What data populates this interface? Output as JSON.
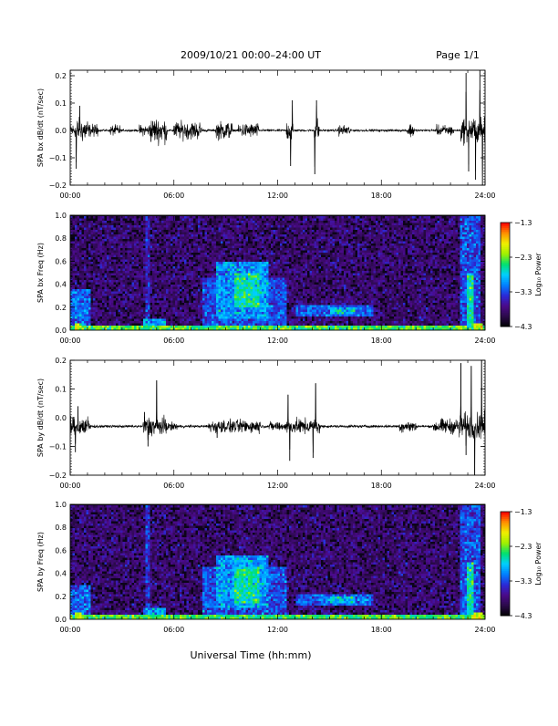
{
  "header": {
    "title": "2009/10/21  00:00–24:00 UT",
    "page": "Page 1/1"
  },
  "footer": {
    "xlabel": "Universal Time (hh:mm)"
  },
  "colors": {
    "trace": "#000000",
    "colormap": [
      "#000000",
      "#2a0a4a",
      "#4b0a8a",
      "#2a2ad8",
      "#0080ff",
      "#00d0ff",
      "#00e070",
      "#a0f000",
      "#f0f000",
      "#ff9000",
      "#ff0000"
    ]
  },
  "chart_data": [
    {
      "type": "line",
      "ylabel": "SPA bx dB/dt (nT/sec)",
      "xlim": [
        0,
        24
      ],
      "ylim": [
        -0.2,
        0.22
      ],
      "xticks": [
        "00:00",
        "06:00",
        "12:00",
        "18:00",
        "24:00"
      ],
      "yticks": [
        "0.2",
        "0.1",
        "0.0",
        "−0.1",
        "−0.2"
      ],
      "ytick_values": [
        0.2,
        0.1,
        0.0,
        -0.1,
        -0.2
      ],
      "baseline": 0.0,
      "noise_level": 0.006,
      "envelope": [
        {
          "t0": 0.0,
          "t1": 0.4,
          "amp": 0.04
        },
        {
          "t0": 0.4,
          "t1": 1.0,
          "amp": 0.07
        },
        {
          "t0": 1.0,
          "t1": 1.6,
          "amp": 0.035
        },
        {
          "t0": 2.3,
          "t1": 2.9,
          "amp": 0.03
        },
        {
          "t0": 4.0,
          "t1": 4.6,
          "amp": 0.03
        },
        {
          "t0": 4.6,
          "t1": 5.6,
          "amp": 0.07
        },
        {
          "t0": 6.0,
          "t1": 7.6,
          "amp": 0.05
        },
        {
          "t0": 8.4,
          "t1": 9.4,
          "amp": 0.05
        },
        {
          "t0": 9.7,
          "t1": 10.9,
          "amp": 0.04
        },
        {
          "t0": 12.5,
          "t1": 12.9,
          "amp": 0.06
        },
        {
          "t0": 14.1,
          "t1": 14.4,
          "amp": 0.07
        },
        {
          "t0": 15.5,
          "t1": 16.2,
          "amp": 0.03
        },
        {
          "t0": 19.5,
          "t1": 19.9,
          "amp": 0.04
        },
        {
          "t0": 21.2,
          "t1": 22.2,
          "amp": 0.03
        },
        {
          "t0": 22.6,
          "t1": 24.0,
          "amp": 0.07
        }
      ],
      "spikes": [
        {
          "t": 0.35,
          "value": -0.14
        },
        {
          "t": 0.55,
          "value": 0.09
        },
        {
          "t": 12.75,
          "value": -0.13
        },
        {
          "t": 12.85,
          "value": 0.11
        },
        {
          "t": 14.15,
          "value": -0.16
        },
        {
          "t": 14.25,
          "value": 0.11
        },
        {
          "t": 22.9,
          "value": 0.21
        },
        {
          "t": 23.05,
          "value": -0.15
        },
        {
          "t": 23.45,
          "value": -0.18
        },
        {
          "t": 23.7,
          "value": 0.22
        },
        {
          "t": 23.85,
          "value": -0.2
        }
      ]
    },
    {
      "type": "heatmap",
      "ylabel": "SPA bx Freq (Hz)",
      "xlim": [
        0,
        24
      ],
      "ylim": [
        0.0,
        1.0
      ],
      "xticks": [
        "00:00",
        "06:00",
        "12:00",
        "18:00",
        "24:00"
      ],
      "yticks": [
        "1.0",
        "0.8",
        "0.6",
        "0.4",
        "0.2",
        "0.0"
      ],
      "ytick_values": [
        1.0,
        0.8,
        0.6,
        0.4,
        0.2,
        0.0
      ],
      "colorbar": {
        "label": "Log₁₀ Power",
        "ticks": [
          "−1.3",
          "−2.3",
          "−3.3",
          "−4.3"
        ],
        "tick_values": [
          -1.3,
          -2.3,
          -3.3,
          -4.3
        ],
        "range": [
          -4.3,
          -1.3
        ]
      },
      "background_level": -3.85,
      "features": [
        {
          "t0": 0.0,
          "t1": 24.0,
          "f0": 0.0,
          "f1": 0.03,
          "level": -2.4
        },
        {
          "t0": 0.0,
          "t1": 1.2,
          "f0": 0.0,
          "f1": 0.35,
          "level": -3.2
        },
        {
          "t0": 0.2,
          "t1": 0.7,
          "f0": 0.0,
          "f1": 0.05,
          "level": -2.1
        },
        {
          "t0": 4.4,
          "t1": 4.6,
          "f0": 0.0,
          "f1": 1.0,
          "level": -3.5
        },
        {
          "t0": 4.2,
          "t1": 5.5,
          "f0": 0.0,
          "f1": 0.1,
          "level": -3.0
        },
        {
          "t0": 7.6,
          "t1": 12.5,
          "f0": 0.0,
          "f1": 0.45,
          "level": -3.3
        },
        {
          "t0": 8.5,
          "t1": 11.5,
          "f0": 0.1,
          "f1": 0.6,
          "level": -3.0
        },
        {
          "t0": 9.5,
          "t1": 11.0,
          "f0": 0.2,
          "f1": 0.5,
          "level": -2.6
        },
        {
          "t0": 13.0,
          "t1": 17.5,
          "f0": 0.12,
          "f1": 0.22,
          "level": -3.2
        },
        {
          "t0": 15.0,
          "t1": 16.5,
          "f0": 0.14,
          "f1": 0.2,
          "level": -2.8
        },
        {
          "t0": 22.6,
          "t1": 23.7,
          "f0": 0.0,
          "f1": 1.0,
          "level": -3.3
        },
        {
          "t0": 23.0,
          "t1": 23.4,
          "f0": 0.0,
          "f1": 0.5,
          "level": -2.6
        },
        {
          "t0": 23.4,
          "t1": 23.9,
          "f0": 0.0,
          "f1": 0.06,
          "level": -2.0
        }
      ]
    },
    {
      "type": "line",
      "ylabel": "SPA by dB/dt (nT/sec)",
      "xlim": [
        0,
        24
      ],
      "ylim": [
        -0.2,
        0.2
      ],
      "xticks": [
        "00:00",
        "06:00",
        "12:00",
        "18:00",
        "24:00"
      ],
      "yticks": [
        "0.2",
        "0.1",
        "0.0",
        "−0.1",
        "−0.2"
      ],
      "ytick_values": [
        0.2,
        0.1,
        0.0,
        -0.1,
        -0.2
      ],
      "baseline": -0.03,
      "noise_level": 0.007,
      "envelope": [
        {
          "t0": 0.0,
          "t1": 1.2,
          "amp": 0.05
        },
        {
          "t0": 4.2,
          "t1": 5.6,
          "amp": 0.05
        },
        {
          "t0": 5.6,
          "t1": 6.2,
          "amp": 0.02
        },
        {
          "t0": 8.0,
          "t1": 11.0,
          "amp": 0.035
        },
        {
          "t0": 11.5,
          "t1": 12.5,
          "amp": 0.025
        },
        {
          "t0": 12.5,
          "t1": 14.5,
          "amp": 0.04
        },
        {
          "t0": 19.0,
          "t1": 20.0,
          "amp": 0.03
        },
        {
          "t0": 21.0,
          "t1": 22.5,
          "amp": 0.04
        },
        {
          "t0": 22.5,
          "t1": 24.0,
          "amp": 0.07
        }
      ],
      "spikes": [
        {
          "t": 0.3,
          "value": -0.12
        },
        {
          "t": 0.45,
          "value": 0.04
        },
        {
          "t": 4.3,
          "value": 0.02
        },
        {
          "t": 4.5,
          "value": -0.1
        },
        {
          "t": 5.0,
          "value": 0.13
        },
        {
          "t": 8.5,
          "value": -0.07
        },
        {
          "t": 12.6,
          "value": 0.08
        },
        {
          "t": 12.7,
          "value": -0.15
        },
        {
          "t": 14.05,
          "value": -0.14
        },
        {
          "t": 14.2,
          "value": 0.12
        },
        {
          "t": 22.6,
          "value": 0.19
        },
        {
          "t": 22.9,
          "value": -0.13
        },
        {
          "t": 23.2,
          "value": 0.18
        },
        {
          "t": 23.4,
          "value": -0.2
        },
        {
          "t": 23.8,
          "value": 0.2
        }
      ]
    },
    {
      "type": "heatmap",
      "ylabel": "SPA by Freq (Hz)",
      "xlim": [
        0,
        24
      ],
      "ylim": [
        0.0,
        1.0
      ],
      "xticks": [
        "00:00",
        "06:00",
        "12:00",
        "18:00",
        "24:00"
      ],
      "yticks": [
        "1.0",
        "0.8",
        "0.6",
        "0.4",
        "0.2",
        "0.0"
      ],
      "ytick_values": [
        1.0,
        0.8,
        0.6,
        0.4,
        0.2,
        0.0
      ],
      "colorbar": {
        "label": "Log₁₀ Power",
        "ticks": [
          "−1.3",
          "−2.3",
          "−3.3",
          "−4.3"
        ],
        "tick_values": [
          -1.3,
          -2.3,
          -3.3,
          -4.3
        ],
        "range": [
          -4.3,
          -1.3
        ]
      },
      "background_level": -3.85,
      "features": [
        {
          "t0": 0.0,
          "t1": 24.0,
          "f0": 0.0,
          "f1": 0.03,
          "level": -2.4
        },
        {
          "t0": 0.0,
          "t1": 1.2,
          "f0": 0.0,
          "f1": 0.3,
          "level": -3.2
        },
        {
          "t0": 0.2,
          "t1": 0.7,
          "f0": 0.0,
          "f1": 0.05,
          "level": -2.1
        },
        {
          "t0": 4.4,
          "t1": 4.6,
          "f0": 0.0,
          "f1": 1.0,
          "level": -3.4
        },
        {
          "t0": 4.2,
          "t1": 5.5,
          "f0": 0.0,
          "f1": 0.1,
          "level": -3.0
        },
        {
          "t0": 7.6,
          "t1": 12.5,
          "f0": 0.0,
          "f1": 0.45,
          "level": -3.3
        },
        {
          "t0": 8.5,
          "t1": 11.5,
          "f0": 0.1,
          "f1": 0.55,
          "level": -3.0
        },
        {
          "t0": 9.5,
          "t1": 11.0,
          "f0": 0.15,
          "f1": 0.45,
          "level": -2.6
        },
        {
          "t0": 13.0,
          "t1": 17.5,
          "f0": 0.12,
          "f1": 0.22,
          "level": -3.2
        },
        {
          "t0": 15.0,
          "t1": 16.5,
          "f0": 0.14,
          "f1": 0.2,
          "level": -2.8
        },
        {
          "t0": 22.6,
          "t1": 23.7,
          "f0": 0.0,
          "f1": 1.0,
          "level": -3.3
        },
        {
          "t0": 23.0,
          "t1": 23.4,
          "f0": 0.0,
          "f1": 0.5,
          "level": -2.6
        },
        {
          "t0": 23.4,
          "t1": 23.9,
          "f0": 0.0,
          "f1": 0.06,
          "level": -2.0
        }
      ]
    }
  ]
}
